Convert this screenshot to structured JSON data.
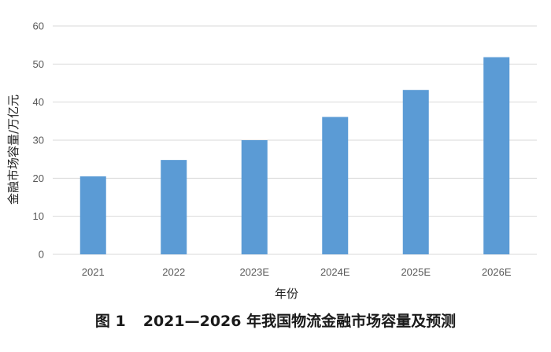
{
  "figure_caption": {
    "number": "图 1",
    "text": "2021—2026 年我国物流金融市场容量及预测"
  },
  "colors": {
    "bar": "#5B9BD5",
    "grid": "#D9D9D9",
    "tick_text": "#595959"
  },
  "chart_data": {
    "type": "bar",
    "title": "",
    "xlabel": "年份",
    "ylabel": "金融市场容量/万亿元",
    "categories": [
      "2021",
      "2022",
      "2023E",
      "2024E",
      "2025E",
      "2026E"
    ],
    "series": [
      {
        "values": [
          20.5,
          24.8,
          30.0,
          36.1,
          43.2,
          51.8
        ]
      }
    ],
    "ylim": [
      0,
      60
    ],
    "yticks": [
      "0",
      "10",
      "20",
      "30",
      "40",
      "50",
      "60"
    ],
    "grid": true,
    "legend": "none"
  }
}
